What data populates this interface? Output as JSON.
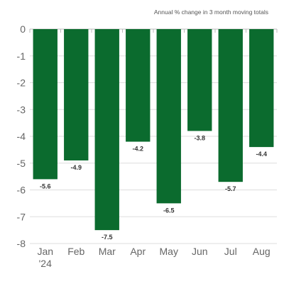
{
  "chart_data": {
    "type": "bar",
    "subtitle": "Annual % change in 3 month moving totals",
    "categories": [
      "Jan",
      "Feb",
      "Mar",
      "Apr",
      "May",
      "Jun",
      "Jul",
      "Aug"
    ],
    "category_sublabels": [
      "'24",
      "",
      "",
      "",
      "",
      "",
      "",
      ""
    ],
    "values": [
      -5.6,
      -4.9,
      -7.5,
      -4.2,
      -6.5,
      -3.8,
      -5.7,
      -4.4
    ],
    "data_labels": [
      "-5.6",
      "-4.9",
      "-7.5",
      "-4.2",
      "-6.5",
      "-3.8",
      "-5.7",
      "-4.4"
    ],
    "ylim": [
      -8,
      0
    ],
    "yticks": [
      0,
      -1,
      -2,
      -3,
      -4,
      -5,
      -6,
      -7,
      -8
    ],
    "grid": true,
    "bar_color": "#0b6b2e"
  }
}
